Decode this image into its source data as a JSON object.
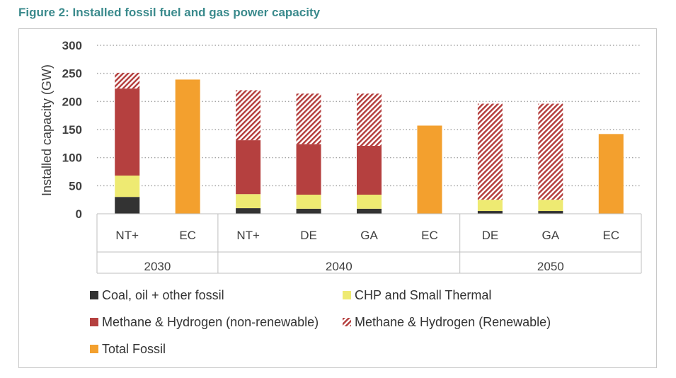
{
  "figure": {
    "title": "Figure 2: Installed fossil fuel and gas power capacity"
  },
  "colors": {
    "coal": "#333333",
    "chp": "#eeea72",
    "methane_nonrenew": "#b5403f",
    "methane_renew": "#b5403f",
    "total_fossil": "#f3a02e",
    "title": "#3a8a8c"
  },
  "chart_data": {
    "type": "bar",
    "stacked": true,
    "ylabel": "Installed capacity (GW)",
    "ylim": [
      0,
      300
    ],
    "yticks": [
      0,
      50,
      100,
      150,
      200,
      250,
      300
    ],
    "grid": true,
    "legend_position": "bottom",
    "categories": [
      "NT+",
      "EC",
      "NT+",
      "DE",
      "GA",
      "EC",
      "DE",
      "GA",
      "EC"
    ],
    "groups": [
      {
        "label": "2030",
        "count": 2
      },
      {
        "label": "2040",
        "count": 4
      },
      {
        "label": "2050",
        "count": 3
      }
    ],
    "series": [
      {
        "name": "Coal, oil + other fossil",
        "key": "coal",
        "values": [
          30,
          0,
          10,
          9,
          9,
          0,
          5,
          5,
          0
        ]
      },
      {
        "name": "CHP and Small Thermal",
        "key": "chp",
        "values": [
          38,
          0,
          25,
          25,
          25,
          0,
          20,
          20,
          0
        ]
      },
      {
        "name": "Methane & Hydrogen (non-renewable)",
        "key": "methane_nonrenew",
        "values": [
          155,
          0,
          96,
          90,
          87,
          0,
          0,
          0,
          0
        ]
      },
      {
        "name": "Methane & Hydrogen (Renewable)",
        "key": "methane_renew",
        "values": [
          28,
          0,
          89,
          90,
          93,
          0,
          171,
          171,
          0
        ]
      },
      {
        "name": "Total Fossil",
        "key": "total_fossil",
        "values": [
          0,
          239,
          0,
          0,
          0,
          157,
          0,
          0,
          142
        ]
      }
    ]
  }
}
